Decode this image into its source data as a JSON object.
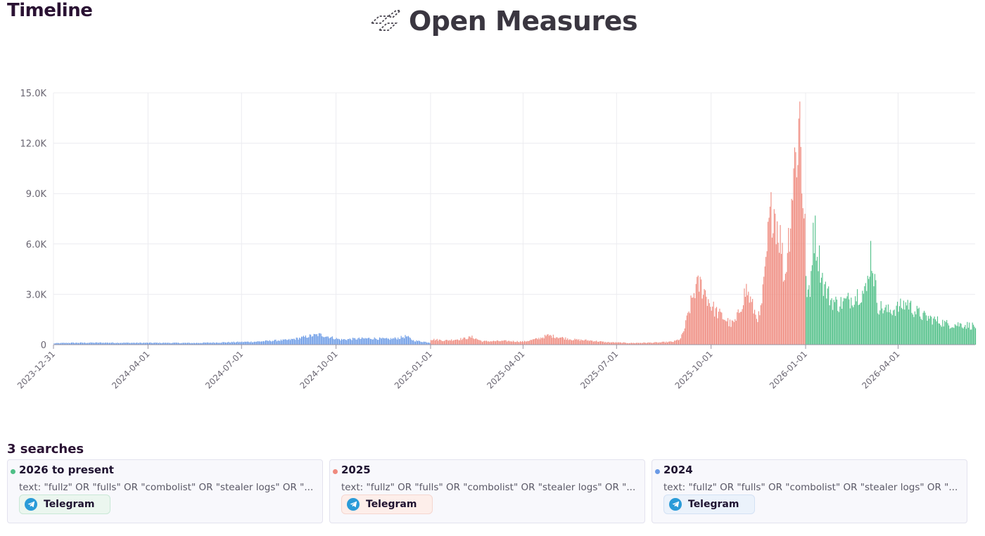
{
  "page": {
    "title": "Timeline",
    "brand": "Open Measures",
    "brand_icon": "open-measures-logo-icon"
  },
  "searches": {
    "heading": "3 searches",
    "items": [
      {
        "label": "2026 to present",
        "color": "#4fbf87",
        "query": "text: \"fullz\" OR \"fulls\" OR \"combolist\" OR \"stealer logs\" OR \"...",
        "platform": "Telegram",
        "platform_icon": "telegram-icon",
        "pill_bg": "#ebf6ef",
        "pill_border": "#c9e8d6"
      },
      {
        "label": "2025",
        "color": "#ef8a7e",
        "query": "text: \"fullz\" OR \"fulls\" OR \"combolist\" OR \"stealer logs\" OR \"...",
        "platform": "Telegram",
        "platform_icon": "telegram-icon",
        "pill_bg": "#fdeeea",
        "pill_border": "#f5d6cf"
      },
      {
        "label": "2024",
        "color": "#6a9ae6",
        "query": "text: \"fullz\" OR \"fulls\" OR \"combolist\" OR \"stealer logs\" OR \"...",
        "platform": "Telegram",
        "platform_icon": "telegram-icon",
        "pill_bg": "#ebf2fb",
        "pill_border": "#d3e1f4"
      }
    ]
  },
  "chart_data": {
    "type": "bar",
    "xlabel": "",
    "ylabel": "",
    "xlim": [
      "2023-12-31",
      "2026-06-15"
    ],
    "ylim": [
      0,
      15000
    ],
    "y_ticks": [
      {
        "value": 0,
        "label": "0"
      },
      {
        "value": 3000,
        "label": "3.0K"
      },
      {
        "value": 6000,
        "label": "6.0K"
      },
      {
        "value": 9000,
        "label": "9.0K"
      },
      {
        "value": 12000,
        "label": "12.0K"
      },
      {
        "value": 15000,
        "label": "15.0K"
      }
    ],
    "x_ticks": [
      "2023-12-31",
      "2024-04-01",
      "2024-07-01",
      "2024-10-01",
      "2025-01-01",
      "2025-04-01",
      "2025-07-01",
      "2025-10-01",
      "2026-01-01",
      "2026-04-01"
    ],
    "grid": true,
    "legend": "none",
    "series": [
      {
        "name": "2024",
        "color": "#6a9ae6",
        "start": "2023-12-31",
        "end": "2024-12-31",
        "shape": [
          [
            "2023-12-31",
            80
          ],
          [
            "2024-01-15",
            110
          ],
          [
            "2024-02-15",
            120
          ],
          [
            "2024-03-15",
            110
          ],
          [
            "2024-04-15",
            110
          ],
          [
            "2024-05-15",
            100
          ],
          [
            "2024-06-15",
            140
          ],
          [
            "2024-07-15",
            180
          ],
          [
            "2024-07-31",
            240
          ],
          [
            "2024-08-15",
            280
          ],
          [
            "2024-08-25",
            380
          ],
          [
            "2024-09-05",
            520
          ],
          [
            "2024-09-15",
            600
          ],
          [
            "2024-09-25",
            450
          ],
          [
            "2024-10-05",
            300
          ],
          [
            "2024-10-20",
            350
          ],
          [
            "2024-11-05",
            380
          ],
          [
            "2024-11-20",
            330
          ],
          [
            "2024-12-01",
            400
          ],
          [
            "2024-12-08",
            500
          ],
          [
            "2024-12-15",
            250
          ],
          [
            "2024-12-31",
            130
          ]
        ]
      },
      {
        "name": "2025",
        "color": "#ef8a7e",
        "start": "2025-01-01",
        "end": "2025-12-31",
        "shape": [
          [
            "2025-01-01",
            320
          ],
          [
            "2025-01-15",
            250
          ],
          [
            "2025-02-01",
            350
          ],
          [
            "2025-02-10",
            450
          ],
          [
            "2025-02-20",
            200
          ],
          [
            "2025-03-15",
            220
          ],
          [
            "2025-04-01",
            180
          ],
          [
            "2025-04-15",
            350
          ],
          [
            "2025-04-25",
            550
          ],
          [
            "2025-05-05",
            450
          ],
          [
            "2025-05-20",
            300
          ],
          [
            "2025-06-05",
            250
          ],
          [
            "2025-06-20",
            150
          ],
          [
            "2025-07-15",
            100
          ],
          [
            "2025-08-10",
            130
          ],
          [
            "2025-08-25",
            180
          ],
          [
            "2025-09-01",
            350
          ],
          [
            "2025-09-05",
            1000
          ],
          [
            "2025-09-10",
            2200
          ],
          [
            "2025-09-15",
            3300
          ],
          [
            "2025-09-20",
            3600
          ],
          [
            "2025-09-25",
            3100
          ],
          [
            "2025-09-30",
            2400
          ],
          [
            "2025-10-05",
            2000
          ],
          [
            "2025-10-15",
            1500
          ],
          [
            "2025-10-20",
            1200
          ],
          [
            "2025-10-25",
            1400
          ],
          [
            "2025-11-01",
            2800
          ],
          [
            "2025-11-04",
            3300
          ],
          [
            "2025-11-08",
            2600
          ],
          [
            "2025-11-13",
            1800
          ],
          [
            "2025-11-17",
            1600
          ],
          [
            "2025-11-22",
            4000
          ],
          [
            "2025-11-26",
            7000
          ],
          [
            "2025-11-30",
            8500
          ],
          [
            "2025-12-03",
            7500
          ],
          [
            "2025-12-08",
            6000
          ],
          [
            "2025-12-11",
            3800
          ],
          [
            "2025-12-16",
            7000
          ],
          [
            "2025-12-20",
            10500
          ],
          [
            "2025-12-24",
            12000
          ],
          [
            "2025-12-26",
            13900
          ],
          [
            "2025-12-28",
            9800
          ],
          [
            "2025-12-31",
            7500
          ]
        ]
      },
      {
        "name": "2026 to present",
        "color": "#4fbf87",
        "start": "2026-01-01",
        "end": "2026-06-15",
        "shape": [
          [
            "2026-01-01",
            3500
          ],
          [
            "2026-01-05",
            2800
          ],
          [
            "2026-01-08",
            7200
          ],
          [
            "2026-01-12",
            5800
          ],
          [
            "2026-01-18",
            3600
          ],
          [
            "2026-01-25",
            2700
          ],
          [
            "2026-02-01",
            2400
          ],
          [
            "2026-02-10",
            2600
          ],
          [
            "2026-02-20",
            3000
          ],
          [
            "2026-03-01",
            3200
          ],
          [
            "2026-03-05",
            5600
          ],
          [
            "2026-03-08",
            4200
          ],
          [
            "2026-03-12",
            2300
          ],
          [
            "2026-03-22",
            2000
          ],
          [
            "2026-04-01",
            2200
          ],
          [
            "2026-04-10",
            2500
          ],
          [
            "2026-04-15",
            2100
          ],
          [
            "2026-04-25",
            1700
          ],
          [
            "2026-05-05",
            1500
          ],
          [
            "2026-05-20",
            1200
          ],
          [
            "2026-06-01",
            1200
          ],
          [
            "2026-06-15",
            1100
          ]
        ]
      }
    ]
  }
}
